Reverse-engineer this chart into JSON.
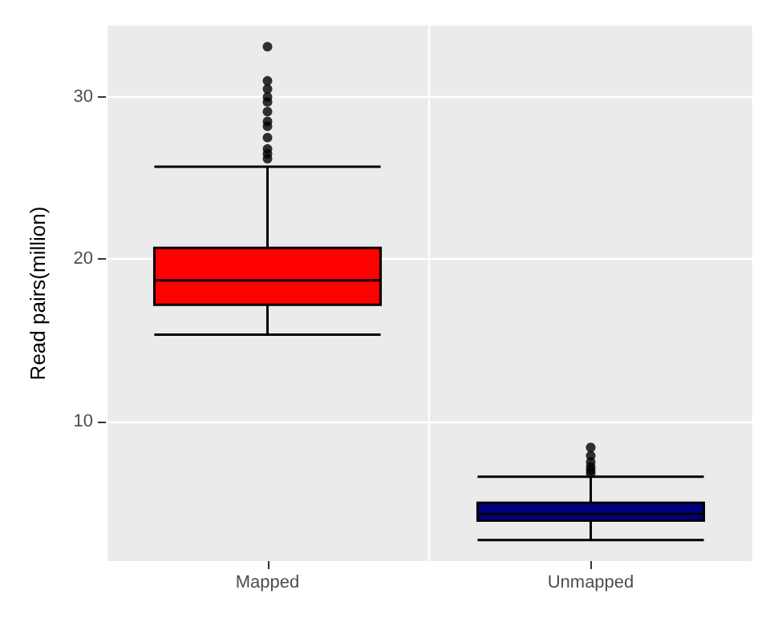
{
  "chart_data": {
    "type": "box",
    "ylabel": "Read pairs(million)",
    "categories": [
      "Mapped",
      "Unmapped"
    ],
    "boxes": [
      {
        "low": 15.35,
        "q1": 17.2,
        "median": 18.7,
        "q3": 20.7,
        "high": 25.7,
        "outliers": [
          26.2,
          26.5,
          26.8,
          27.5,
          28.2,
          28.5,
          29.1,
          29.7,
          30.0,
          30.5,
          31.0,
          33.1
        ]
      },
      {
        "low": 2.7,
        "q1": 3.9,
        "median": 4.3,
        "q3": 5.0,
        "high": 6.6,
        "outliers": [
          6.8,
          7.0,
          7.2,
          7.5,
          7.9,
          8.4
        ]
      }
    ],
    "colors": [
      "#ff0000",
      "#000080"
    ],
    "ylim": [
      1.4,
      34.4
    ],
    "yticks": [
      10,
      20,
      30
    ],
    "grid": true,
    "marker": "circle"
  }
}
